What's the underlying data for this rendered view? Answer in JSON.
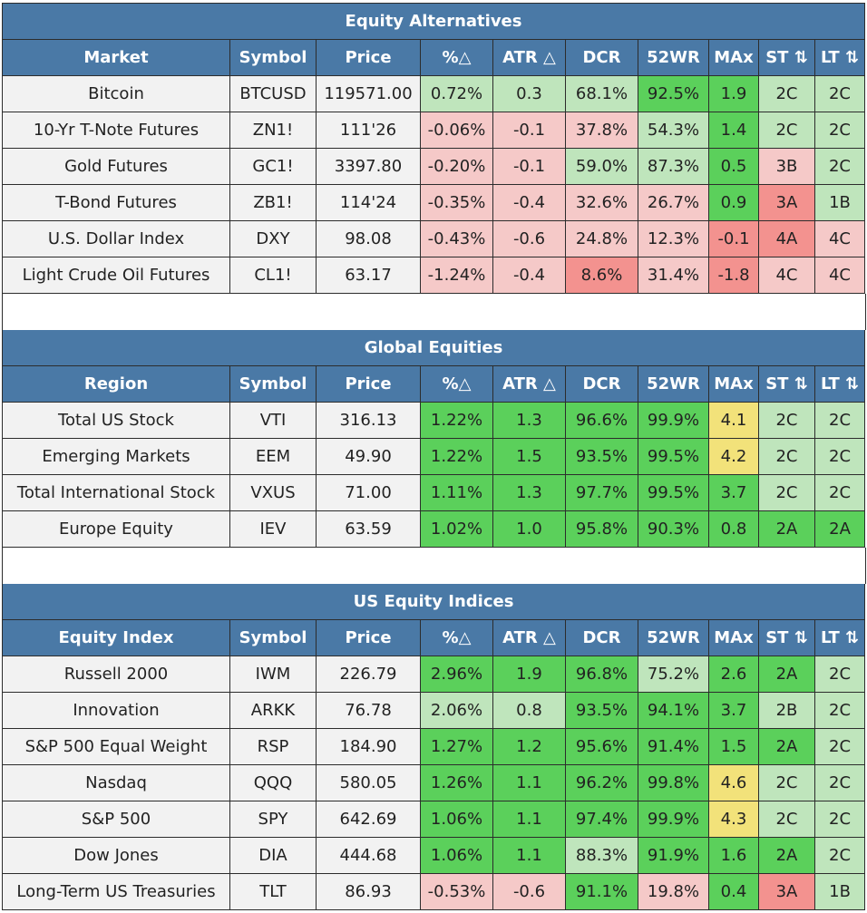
{
  "colors": {
    "header_bg": "#4a79a6",
    "header_text": "#ffffff",
    "plain_cell": "#f2f2f2",
    "green_dark": "#5bd05b",
    "green_light": "#bfe5bc",
    "red_light": "#f5c9c8",
    "red_dark": "#f3928f",
    "yellow": "#f2e27a"
  },
  "sections": [
    {
      "title": "Equity Alternatives",
      "headers": [
        "Market",
        "Symbol",
        "Price",
        "%△",
        "ATR △",
        "DCR",
        "52WR",
        "MAx",
        "ST ⇅",
        "LT ⇅"
      ],
      "rows": [
        {
          "cells": [
            "Bitcoin",
            "BTCUSD",
            "119571.00",
            "0.72%",
            "0.3",
            "68.1%",
            "92.5%",
            "1.9",
            "2C",
            "2C"
          ],
          "colors": [
            "plain",
            "plain",
            "plain",
            "g-light",
            "g-light",
            "g-light",
            "g-dark",
            "g-dark",
            "g-light",
            "g-light"
          ]
        },
        {
          "cells": [
            "10-Yr T-Note Futures",
            "ZN1!",
            "111'26",
            "-0.06%",
            "-0.1",
            "37.8%",
            "54.3%",
            "1.4",
            "2C",
            "2C"
          ],
          "colors": [
            "plain",
            "plain",
            "plain",
            "r-light",
            "r-light",
            "r-light",
            "g-light",
            "g-dark",
            "g-light",
            "g-light"
          ]
        },
        {
          "cells": [
            "Gold Futures",
            "GC1!",
            "3397.80",
            "-0.20%",
            "-0.1",
            "59.0%",
            "87.3%",
            "0.5",
            "3B",
            "2C"
          ],
          "colors": [
            "plain",
            "plain",
            "plain",
            "r-light",
            "r-light",
            "g-light",
            "g-light",
            "g-dark",
            "r-light",
            "g-light"
          ]
        },
        {
          "cells": [
            "T-Bond Futures",
            "ZB1!",
            "114'24",
            "-0.35%",
            "-0.4",
            "32.6%",
            "26.7%",
            "0.9",
            "3A",
            "1B"
          ],
          "colors": [
            "plain",
            "plain",
            "plain",
            "r-light",
            "r-light",
            "r-light",
            "r-light",
            "g-dark",
            "r-dark",
            "g-light"
          ]
        },
        {
          "cells": [
            "U.S. Dollar Index",
            "DXY",
            "98.08",
            "-0.43%",
            "-0.6",
            "24.8%",
            "12.3%",
            "-0.1",
            "4A",
            "4C"
          ],
          "colors": [
            "plain",
            "plain",
            "plain",
            "r-light",
            "r-light",
            "r-light",
            "r-light",
            "r-dark",
            "r-dark",
            "r-light"
          ]
        },
        {
          "cells": [
            "Light Crude Oil Futures",
            "CL1!",
            "63.17",
            "-1.24%",
            "-0.4",
            "8.6%",
            "31.4%",
            "-1.8",
            "4C",
            "4C"
          ],
          "colors": [
            "plain",
            "plain",
            "plain",
            "r-light",
            "r-light",
            "r-dark",
            "r-light",
            "r-dark",
            "r-light",
            "r-light"
          ]
        }
      ]
    },
    {
      "title": "Global Equities",
      "headers": [
        "Region",
        "Symbol",
        "Price",
        "%△",
        "ATR △",
        "DCR",
        "52WR",
        "MAx",
        "ST ⇅",
        "LT ⇅"
      ],
      "rows": [
        {
          "cells": [
            "Total US Stock",
            "VTI",
            "316.13",
            "1.22%",
            "1.3",
            "96.6%",
            "99.9%",
            "4.1",
            "2C",
            "2C"
          ],
          "colors": [
            "plain",
            "plain",
            "plain",
            "g-dark",
            "g-dark",
            "g-dark",
            "g-dark",
            "yellow",
            "g-light",
            "g-light"
          ]
        },
        {
          "cells": [
            "Emerging Markets",
            "EEM",
            "49.90",
            "1.22%",
            "1.5",
            "93.5%",
            "99.5%",
            "4.2",
            "2C",
            "2C"
          ],
          "colors": [
            "plain",
            "plain",
            "plain",
            "g-dark",
            "g-dark",
            "g-dark",
            "g-dark",
            "yellow",
            "g-light",
            "g-light"
          ]
        },
        {
          "cells": [
            "Total International Stock",
            "VXUS",
            "71.00",
            "1.11%",
            "1.3",
            "97.7%",
            "99.5%",
            "3.7",
            "2C",
            "2C"
          ],
          "colors": [
            "plain",
            "plain",
            "plain",
            "g-dark",
            "g-dark",
            "g-dark",
            "g-dark",
            "g-dark",
            "g-light",
            "g-light"
          ]
        },
        {
          "cells": [
            "Europe Equity",
            "IEV",
            "63.59",
            "1.02%",
            "1.0",
            "95.8%",
            "90.3%",
            "0.8",
            "2A",
            "2A"
          ],
          "colors": [
            "plain",
            "plain",
            "plain",
            "g-dark",
            "g-dark",
            "g-dark",
            "g-dark",
            "g-dark",
            "g-dark",
            "g-dark"
          ]
        }
      ]
    },
    {
      "title": "US Equity Indices",
      "headers": [
        "Equity Index",
        "Symbol",
        "Price",
        "%△",
        "ATR △",
        "DCR",
        "52WR",
        "MAx",
        "ST ⇅",
        "LT ⇅"
      ],
      "rows": [
        {
          "cells": [
            "Russell 2000",
            "IWM",
            "226.79",
            "2.96%",
            "1.9",
            "96.8%",
            "75.2%",
            "2.6",
            "2A",
            "2C"
          ],
          "colors": [
            "plain",
            "plain",
            "plain",
            "g-dark",
            "g-dark",
            "g-dark",
            "g-light",
            "g-dark",
            "g-dark",
            "g-light"
          ]
        },
        {
          "cells": [
            "Innovation",
            "ARKK",
            "76.78",
            "2.06%",
            "0.8",
            "93.5%",
            "94.1%",
            "3.7",
            "2B",
            "2C"
          ],
          "colors": [
            "plain",
            "plain",
            "plain",
            "g-light",
            "g-light",
            "g-dark",
            "g-dark",
            "g-dark",
            "g-light",
            "g-light"
          ]
        },
        {
          "cells": [
            "S&P 500 Equal Weight",
            "RSP",
            "184.90",
            "1.27%",
            "1.2",
            "95.6%",
            "91.4%",
            "1.5",
            "2A",
            "2C"
          ],
          "colors": [
            "plain",
            "plain",
            "plain",
            "g-dark",
            "g-dark",
            "g-dark",
            "g-dark",
            "g-dark",
            "g-dark",
            "g-light"
          ]
        },
        {
          "cells": [
            "Nasdaq",
            "QQQ",
            "580.05",
            "1.26%",
            "1.1",
            "96.2%",
            "99.8%",
            "4.6",
            "2C",
            "2C"
          ],
          "colors": [
            "plain",
            "plain",
            "plain",
            "g-dark",
            "g-dark",
            "g-dark",
            "g-dark",
            "yellow",
            "g-light",
            "g-light"
          ]
        },
        {
          "cells": [
            "S&P 500",
            "SPY",
            "642.69",
            "1.06%",
            "1.1",
            "97.4%",
            "99.9%",
            "4.3",
            "2C",
            "2C"
          ],
          "colors": [
            "plain",
            "plain",
            "plain",
            "g-dark",
            "g-dark",
            "g-dark",
            "g-dark",
            "yellow",
            "g-light",
            "g-light"
          ]
        },
        {
          "cells": [
            "Dow Jones",
            "DIA",
            "444.68",
            "1.06%",
            "1.1",
            "88.3%",
            "91.9%",
            "1.6",
            "2A",
            "2C"
          ],
          "colors": [
            "plain",
            "plain",
            "plain",
            "g-dark",
            "g-dark",
            "g-light",
            "g-dark",
            "g-dark",
            "g-dark",
            "g-light"
          ]
        },
        {
          "cells": [
            "Long-Term US Treasuries",
            "TLT",
            "86.93",
            "-0.53%",
            "-0.6",
            "91.1%",
            "19.8%",
            "0.4",
            "3A",
            "1B"
          ],
          "colors": [
            "plain",
            "plain",
            "plain",
            "r-light",
            "r-light",
            "g-dark",
            "r-light",
            "g-dark",
            "r-dark",
            "g-light"
          ]
        }
      ]
    }
  ]
}
